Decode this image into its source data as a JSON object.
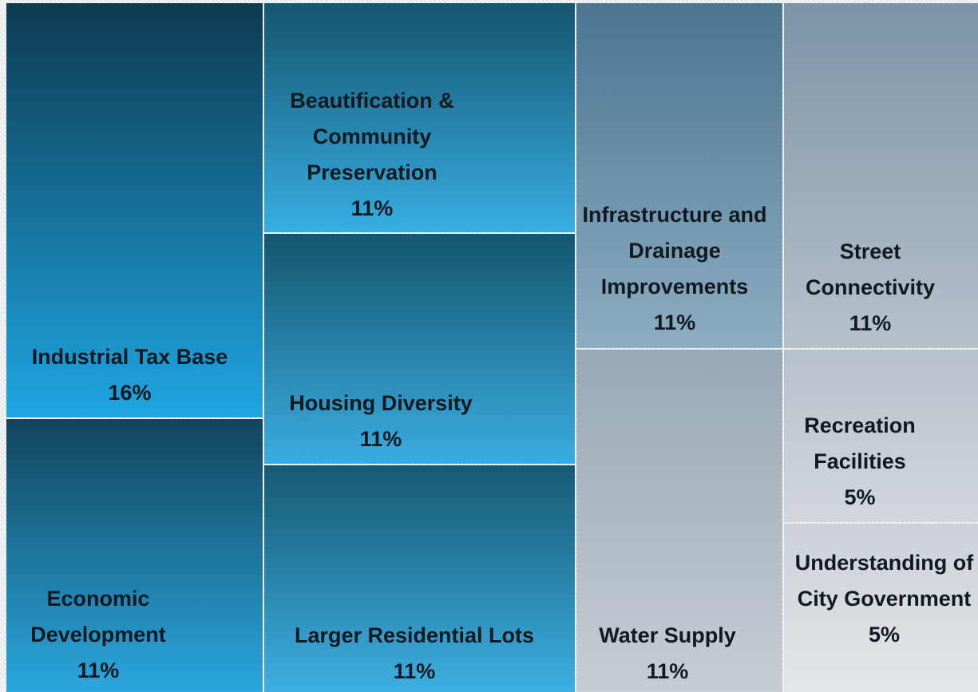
{
  "chart_data": {
    "type": "treemap",
    "categories": [
      "Industrial Tax Base",
      "Economic Development",
      "Beautification & Community Preservation",
      "Housing Diversity",
      "Larger Residential Lots",
      "Infrastructure and Drainage Improvements",
      "Water Supply",
      "Street Connectivity",
      "Recreation Facilities",
      "Understanding of City Government"
    ],
    "values": [
      16,
      11,
      11,
      11,
      11,
      11,
      11,
      11,
      5,
      5
    ],
    "value_labels": [
      "16%",
      "11%",
      "11%",
      "11%",
      "11%",
      "11%",
      "11%",
      "11%",
      "5%",
      "5%"
    ],
    "colors": [
      [
        "#0d3a50",
        "#1fa6e2"
      ],
      [
        "#12445c",
        "#2aa7de"
      ],
      [
        "#15566f",
        "#37ade2"
      ],
      [
        "#14566f",
        "#3aace0"
      ],
      [
        "#165a74",
        "#3dafe2"
      ],
      [
        "#4c7590",
        "#8cadc2"
      ],
      [
        "#98a8b4",
        "#c6cdd4"
      ],
      [
        "#7c94a7",
        "#b7c1cb"
      ],
      [
        "#b7c1ca",
        "#d2d7dd"
      ],
      [
        "#ccd1d7",
        "#e3e6ea"
      ]
    ]
  }
}
